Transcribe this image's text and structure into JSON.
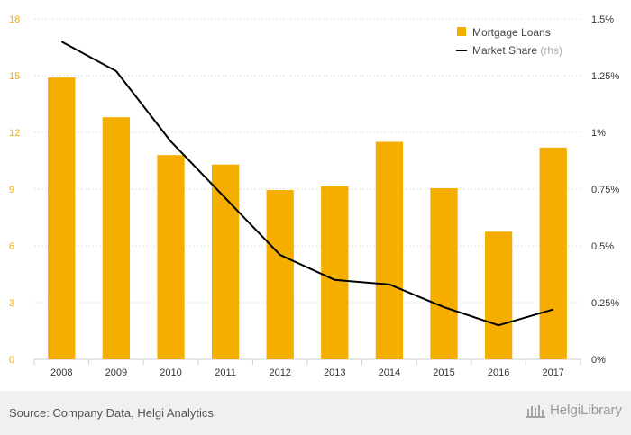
{
  "chart_data": {
    "type": "bar",
    "categories": [
      "2008",
      "2009",
      "2010",
      "2011",
      "2012",
      "2013",
      "2014",
      "2015",
      "2016",
      "2017"
    ],
    "series": [
      {
        "name": "Mortgage Loans",
        "type": "bar",
        "axis": "left",
        "color": "#f5ae00",
        "values": [
          14.9,
          12.8,
          10.8,
          10.3,
          8.95,
          9.15,
          11.5,
          9.05,
          6.75,
          11.2
        ]
      },
      {
        "name": "Market Share",
        "type": "line",
        "axis": "right",
        "color": "#000000",
        "values": [
          1.4,
          1.27,
          0.96,
          0.71,
          0.46,
          0.35,
          0.33,
          0.23,
          0.15,
          0.22
        ]
      }
    ],
    "left_axis": {
      "ylim": [
        0,
        18
      ],
      "ticks": [
        0,
        3,
        6,
        9,
        12,
        15,
        18
      ],
      "tick_labels": [
        "0",
        "3",
        "6",
        "9",
        "12",
        "15",
        "18"
      ]
    },
    "right_axis": {
      "ylim": [
        0,
        1.5
      ],
      "ticks": [
        0,
        0.25,
        0.5,
        0.75,
        1,
        1.25,
        1.5
      ],
      "tick_labels": [
        "0%",
        "0.25%",
        "0.5%",
        "0.75%",
        "1%",
        "1.25%",
        "1.5%"
      ]
    },
    "grid": true,
    "legend": {
      "position": "top-right",
      "items": [
        {
          "label": "Mortgage Loans",
          "suffix": ""
        },
        {
          "label": "Market Share",
          "suffix": "(rhs)"
        }
      ]
    }
  },
  "footer": {
    "source": "Source: Company Data, Helgi Analytics",
    "brand": "HelgiLibrary"
  }
}
